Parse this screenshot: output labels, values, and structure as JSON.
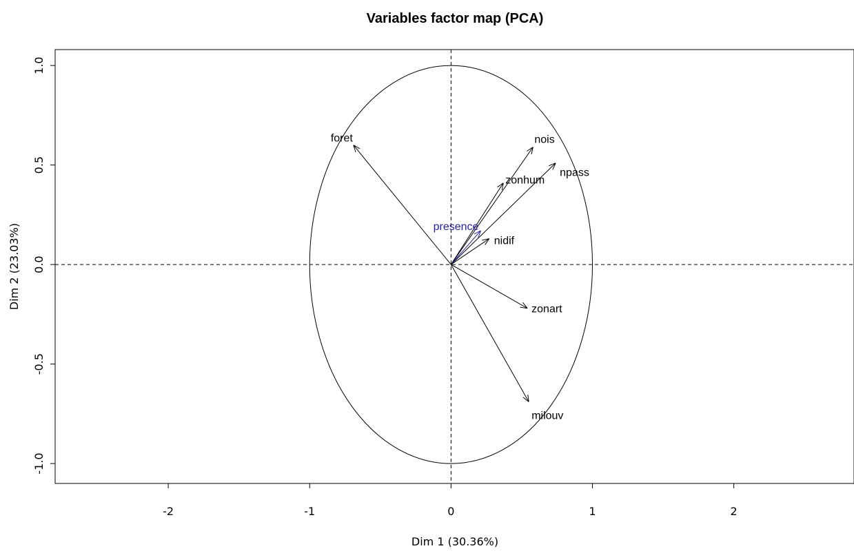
{
  "chart_data": {
    "type": "scatter",
    "title": "Variables factor map (PCA)",
    "xlabel": "Dim 1 (30.36%)",
    "ylabel": "Dim 2 (23.03%)",
    "xlim": [
      -2.8,
      2.85
    ],
    "ylim": [
      -1.1,
      1.08
    ],
    "x_ticks": [
      "-2",
      "-1",
      "0",
      "1",
      "2"
    ],
    "x_tick_values": [
      -2,
      -1,
      0,
      1,
      2
    ],
    "y_ticks": [
      "-1.0",
      "-0.5",
      "0.0",
      "0.5",
      "1.0"
    ],
    "y_tick_values": [
      -1.0,
      -0.5,
      0.0,
      0.5,
      1.0
    ],
    "correlation_circle": true,
    "reference_lines": "dashed at x=0 and y=0",
    "vectors": [
      {
        "label": "foret",
        "x": -0.69,
        "y": 0.6,
        "color": "#000000",
        "label_anchor": "end"
      },
      {
        "label": "nois",
        "x": 0.58,
        "y": 0.59,
        "color": "#000000",
        "label_anchor": "start"
      },
      {
        "label": "npass",
        "x": 0.74,
        "y": 0.51,
        "color": "#000000",
        "label_anchor": "start"
      },
      {
        "label": "zonhum",
        "x": 0.37,
        "y": 0.41,
        "color": "#000000",
        "label_anchor": "middle"
      },
      {
        "label": "presence",
        "x": 0.21,
        "y": 0.17,
        "color": "#1f1fb4",
        "label_anchor": "end"
      },
      {
        "label": "nidif",
        "x": 0.27,
        "y": 0.13,
        "color": "#000000",
        "label_anchor": "start"
      },
      {
        "label": "zonart",
        "x": 0.54,
        "y": -0.22,
        "color": "#000000",
        "label_anchor": "start"
      },
      {
        "label": "milouv",
        "x": 0.55,
        "y": -0.69,
        "color": "#000000",
        "label_anchor": "start"
      }
    ]
  }
}
